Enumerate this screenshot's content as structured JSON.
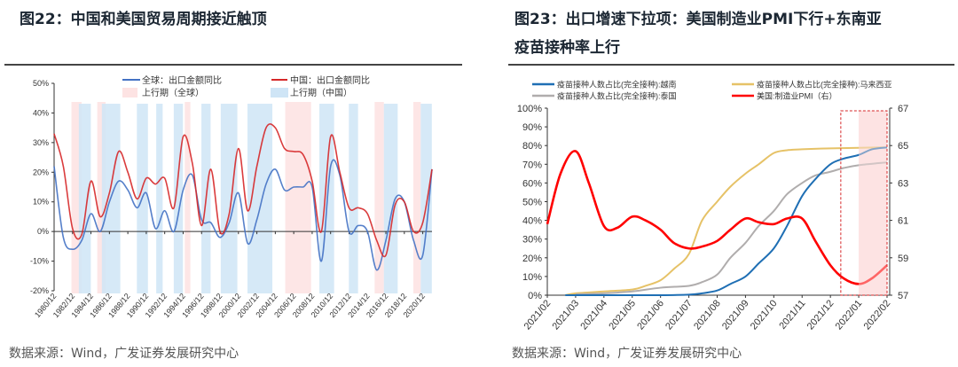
{
  "left": {
    "title": "图22：中国和美国贸易周期接近触顶",
    "footer": "数据来源：Wind，广发证券发展研究中心"
  },
  "right": {
    "title_line1": "图23：出口增速下拉项：美国制造业PMI下行+东南亚",
    "title_line2": "疫苗接种率上行",
    "footer": "数据来源：Wind，广发证券发展研究中心"
  },
  "chart_data": [
    {
      "type": "line",
      "ylim": [
        -20,
        50
      ],
      "y_ticks": [
        "-20%",
        "-10%",
        "0%",
        "10%",
        "20%",
        "30%",
        "40%",
        "50%"
      ],
      "x_ticks": [
        "1980/12",
        "1982/12",
        "1984/12",
        "1986/12",
        "1988/12",
        "1990/12",
        "1992/12",
        "1994/12",
        "1996/12",
        "1998/12",
        "2000/12",
        "2002/12",
        "2004/12",
        "2006/12",
        "2008/12",
        "2010/12",
        "2012/12",
        "2014/12",
        "2016/12",
        "2018/12",
        "2020/12"
      ],
      "x_years": [
        1980,
        1981,
        1982,
        1983,
        1984,
        1985,
        1986,
        1987,
        1988,
        1989,
        1990,
        1991,
        1992,
        1993,
        1994,
        1995,
        1996,
        1997,
        1998,
        1999,
        2000,
        2001,
        2002,
        2003,
        2004,
        2005,
        2006,
        2007,
        2008,
        2009,
        2010,
        2011,
        2012,
        2013,
        2014,
        2015,
        2016,
        2017,
        2018,
        2019,
        2020,
        2021
      ],
      "series": [
        {
          "name": "全球：出口金额同比",
          "color": "#4472c4",
          "values": [
            22,
            -2,
            -6,
            -3,
            6,
            0,
            10,
            17,
            14,
            8,
            13,
            1,
            7,
            0,
            14,
            19,
            4,
            3,
            -2,
            3,
            13,
            -4,
            4,
            16,
            21,
            14,
            15,
            15,
            15,
            -10,
            22,
            19,
            0,
            2,
            0,
            -13,
            -3,
            11,
            10,
            -3,
            -8,
            21
          ]
        },
        {
          "name": "中国：出口金额同比",
          "color": "#d62728",
          "values": [
            33,
            22,
            1,
            -1,
            17,
            5,
            13,
            27,
            20,
            11,
            18,
            16,
            18,
            8,
            32,
            23,
            2,
            21,
            0,
            6,
            28,
            7,
            22,
            35,
            35,
            28,
            27,
            26,
            17,
            0,
            32,
            20,
            8,
            8,
            6,
            -3,
            -8,
            9,
            10,
            0,
            3,
            21
          ]
        }
      ],
      "shaded": [
        {
          "name": "上行期（全球）",
          "color": "#fde3e3",
          "periods": [
            [
              1982.8,
              1983.9
            ],
            [
              1985.6,
              1986.5
            ],
            [
              1995.1,
              1995.7
            ],
            [
              2006.0,
              2008.8
            ],
            [
              2015.7,
              2016.7
            ],
            [
              2019.9,
              2020.7
            ]
          ]
        },
        {
          "name": "上行期（中国）",
          "color": "#cfe5f6",
          "periods": [
            [
              1983.6,
              1984.9
            ],
            [
              1986.1,
              1988.1
            ],
            [
              1989.9,
              1991.1
            ],
            [
              1992.0,
              1992.7
            ],
            [
              1993.9,
              1994.9
            ],
            [
              1996.9,
              1997.9
            ],
            [
              1999.0,
              2000.8
            ],
            [
              2001.9,
              2004.6
            ],
            [
              2009.7,
              2011.3
            ],
            [
              2012.9,
              2013.9
            ],
            [
              2016.7,
              2018.2
            ],
            [
              2020.7,
              2021.9
            ]
          ]
        }
      ]
    },
    {
      "type": "line",
      "ylim_left": [
        0,
        100
      ],
      "ylim_right": [
        57,
        67
      ],
      "y_ticks_left": [
        "0%",
        "10%",
        "20%",
        "30%",
        "40%",
        "50%",
        "60%",
        "70%",
        "80%",
        "90%",
        "100%"
      ],
      "y_ticks_right": [
        "57",
        "59",
        "61",
        "63",
        "65",
        "67"
      ],
      "x_ticks": [
        "2021/02",
        "2021/03",
        "2021/04",
        "2021/05",
        "2021/06",
        "2021/07",
        "2021/08",
        "2021/09",
        "2021/10",
        "2021/11",
        "2021/12",
        "2022/01",
        "2022/02"
      ],
      "series": [
        {
          "name": "疫苗接种人数占比(完全接种):越南",
          "color": "#1f6fb4",
          "axis": "left",
          "points": [
            [
              "2021/02/20",
              0
            ],
            [
              "2021/03",
              0
            ],
            [
              "2021/04",
              0
            ],
            [
              "2021/05",
              0
            ],
            [
              "2021/06",
              0
            ],
            [
              "2021/07",
              0.3
            ],
            [
              "2021/07/15",
              1
            ],
            [
              "2021/08",
              2.5
            ],
            [
              "2021/08/15",
              6
            ],
            [
              "2021/09",
              10
            ],
            [
              "2021/09/15",
              17
            ],
            [
              "2021/10",
              25
            ],
            [
              "2021/10/15",
              37
            ],
            [
              "2021/11",
              53
            ],
            [
              "2021/11/15",
              62
            ],
            [
              "2021/12",
              70
            ],
            [
              "2021/12/15",
              73
            ],
            [
              "2022/01",
              75
            ],
            [
              "2022/01/15",
              78
            ],
            [
              "2022/02",
              79
            ]
          ]
        },
        {
          "name": "疫苗接种人数占比(完全接种):马来西亚",
          "color": "#e6c267",
          "axis": "left",
          "points": [
            [
              "2021/02/20",
              0
            ],
            [
              "2021/03",
              1
            ],
            [
              "2021/04",
              2
            ],
            [
              "2021/05",
              3
            ],
            [
              "2021/05/15",
              5
            ],
            [
              "2021/06",
              8
            ],
            [
              "2021/06/15",
              14
            ],
            [
              "2021/07",
              22
            ],
            [
              "2021/07/15",
              40
            ],
            [
              "2021/08",
              50
            ],
            [
              "2021/08/15",
              58
            ],
            [
              "2021/09",
              65
            ],
            [
              "2021/09/15",
              70
            ],
            [
              "2021/10",
              76
            ],
            [
              "2021/10/15",
              77.5
            ],
            [
              "2021/11",
              78
            ],
            [
              "2021/12",
              78.5
            ],
            [
              "2022/01",
              78.8
            ],
            [
              "2022/02",
              79
            ]
          ]
        },
        {
          "name": "疫苗接种人数占比(完全接种):泰国",
          "color": "#b0adad",
          "axis": "left",
          "points": [
            [
              "2021/03",
              0.5
            ],
            [
              "2021/04",
              1
            ],
            [
              "2021/05",
              2
            ],
            [
              "2021/06",
              4
            ],
            [
              "2021/07",
              5
            ],
            [
              "2021/07/15",
              7
            ],
            [
              "2021/08",
              11
            ],
            [
              "2021/08/15",
              20
            ],
            [
              "2021/09",
              28
            ],
            [
              "2021/09/15",
              37
            ],
            [
              "2021/10",
              45
            ],
            [
              "2021/10/15",
              54
            ],
            [
              "2021/11",
              60
            ],
            [
              "2021/11/15",
              64
            ],
            [
              "2021/12",
              66
            ],
            [
              "2021/12/15",
              68
            ],
            [
              "2022/01",
              69.5
            ],
            [
              "2022/02",
              71
            ]
          ]
        },
        {
          "name": "美国:制造业PMI（右）",
          "color": "#ff0000",
          "axis": "right",
          "points": [
            [
              "2021/02",
              60.8
            ],
            [
              "2021/02/15",
              63.5
            ],
            [
              "2021/03",
              64.7
            ],
            [
              "2021/03/15",
              63
            ],
            [
              "2021/04",
              60.7
            ],
            [
              "2021/04/15",
              60.6
            ],
            [
              "2021/05",
              61.2
            ],
            [
              "2021/05/15",
              61
            ],
            [
              "2021/06",
              60.5
            ],
            [
              "2021/06/15",
              59.8
            ],
            [
              "2021/07",
              59.5
            ],
            [
              "2021/07/15",
              59.6
            ],
            [
              "2021/08",
              59.9
            ],
            [
              "2021/08/15",
              60.5
            ],
            [
              "2021/09",
              61.1
            ],
            [
              "2021/09/15",
              60.9
            ],
            [
              "2021/10",
              60.8
            ],
            [
              "2021/10/15",
              61.1
            ],
            [
              "2021/11",
              61.1
            ],
            [
              "2021/11/15",
              59.9
            ],
            [
              "2021/12",
              58.6
            ],
            [
              "2021/12/15",
              57.9
            ],
            [
              "2022/01",
              57.6
            ],
            [
              "2022/01/15",
              57.9
            ],
            [
              "2022/02",
              58.6
            ]
          ]
        }
      ],
      "highlight": {
        "box_from": "2021/12/12",
        "box_to": "2022/02",
        "fill_from": "2022/01",
        "fill_to": "2022/02",
        "box_color": "#d62728",
        "fill_color": "#fde3e3"
      }
    }
  ]
}
